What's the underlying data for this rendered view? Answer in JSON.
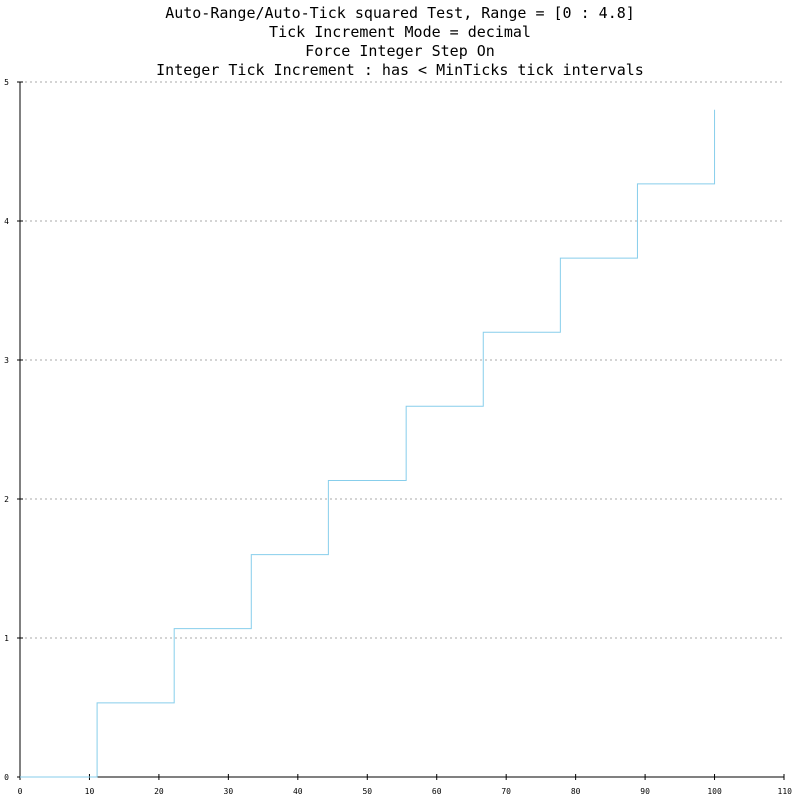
{
  "chart_data": {
    "type": "line",
    "step": true,
    "title_lines": [
      "Auto-Range/Auto-Tick squared Test, Range = [0 : 4.8]",
      "Tick Increment Mode = decimal",
      "Force Integer Step On",
      "Integer Tick Increment : has < MinTicks tick intervals"
    ],
    "xlabel": "",
    "ylabel": "",
    "xlim": [
      0,
      110
    ],
    "ylim": [
      0,
      5
    ],
    "x_ticks": [
      0,
      10,
      20,
      30,
      40,
      50,
      60,
      70,
      80,
      90,
      100,
      110
    ],
    "y_ticks": [
      0,
      1,
      2,
      3,
      4,
      5
    ],
    "y_grid": true,
    "x_grid": false,
    "line_color": "#87ceeb",
    "grid_color": "#aaaaaa",
    "series": [
      {
        "x": [
          0,
          11.1,
          22.2,
          33.3,
          44.4,
          55.6,
          66.7,
          77.8,
          88.9,
          100
        ],
        "y": [
          0,
          0.533,
          1.067,
          1.6,
          2.133,
          2.667,
          3.2,
          3.733,
          4.267,
          4.8
        ]
      }
    ]
  }
}
